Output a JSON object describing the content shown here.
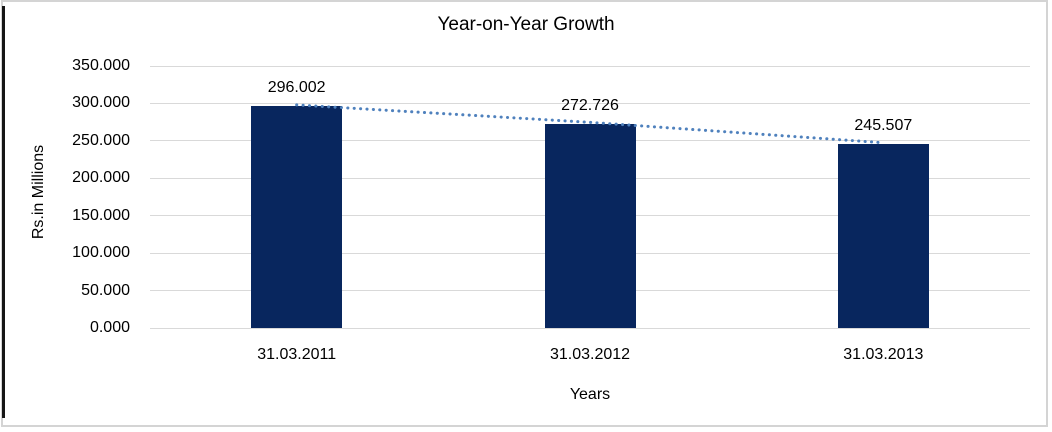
{
  "chart_data": {
    "type": "bar",
    "title": "Year-on-Year Growth",
    "xlabel": "Years",
    "ylabel": "Rs.in Millions",
    "categories": [
      "31.03.2011",
      "31.03.2012",
      "31.03.2013"
    ],
    "values": [
      296.002,
      272.726,
      245.507
    ],
    "data_labels": [
      "296.002",
      "272.726",
      "245.507"
    ],
    "ylim": [
      0,
      350
    ],
    "ytick_step": 50,
    "ytick_labels": [
      "0.000",
      "50.000",
      "100.000",
      "150.000",
      "200.000",
      "250.000",
      "300.000",
      "350.000"
    ],
    "grid": true,
    "legend": "none",
    "trendline": {
      "type": "linear",
      "style": "dotted"
    },
    "colors": {
      "bar": "#08265e",
      "trendline": "#4f81bd",
      "gridline": "#d9d9d9",
      "text": "#000000",
      "frame_border": "#d4d4d4",
      "left_rule": "#161616",
      "background": "#ffffff"
    }
  }
}
